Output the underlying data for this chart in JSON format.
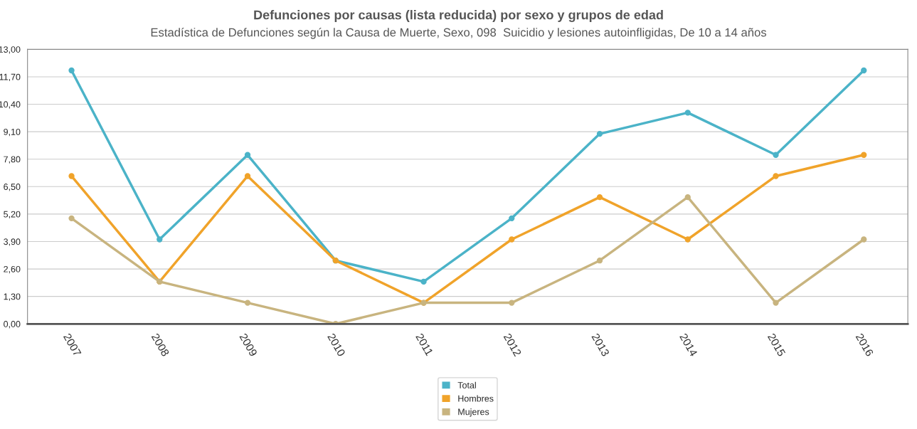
{
  "chart_data": {
    "type": "line",
    "title": "Defunciones por causas (lista reducida) por sexo y grupos de edad",
    "subtitle": "Estadística de Defunciones según la Causa de Muerte, Sexo, 098  Suicidio y lesiones autoinfligidas, De 10 a 14 años",
    "categories": [
      "2007",
      "2008",
      "2009",
      "2010",
      "2011",
      "2012",
      "2013",
      "2014",
      "2015",
      "2016"
    ],
    "series": [
      {
        "name": "Total",
        "color": "#4bb3c8",
        "values": [
          12,
          4,
          8,
          3,
          2,
          5,
          9,
          10,
          8,
          12
        ]
      },
      {
        "name": "Hombres",
        "color": "#f0a32a",
        "values": [
          7,
          2,
          7,
          3,
          1,
          4,
          6,
          4,
          7,
          8
        ]
      },
      {
        "name": "Mujeres",
        "color": "#c8b47f",
        "values": [
          5,
          2,
          1,
          0,
          1,
          1,
          3,
          6,
          1,
          4
        ]
      }
    ],
    "ylim": [
      0,
      13
    ],
    "yticks": [
      {
        "value": 0,
        "label": "0,00"
      },
      {
        "value": 1.3,
        "label": "1,30"
      },
      {
        "value": 2.6,
        "label": "2,60"
      },
      {
        "value": 3.9,
        "label": "3,90"
      },
      {
        "value": 5.2,
        "label": "5,20"
      },
      {
        "value": 6.5,
        "label": "6,50"
      },
      {
        "value": 7.8,
        "label": "7,80"
      },
      {
        "value": 9.1,
        "label": "9,10"
      },
      {
        "value": 10.4,
        "label": "10,40"
      },
      {
        "value": 11.7,
        "label": "11,70"
      },
      {
        "value": 13,
        "label": "13,00"
      }
    ],
    "grid": "y",
    "legend": "bottom",
    "marker": "circle",
    "line_style": "solid"
  }
}
